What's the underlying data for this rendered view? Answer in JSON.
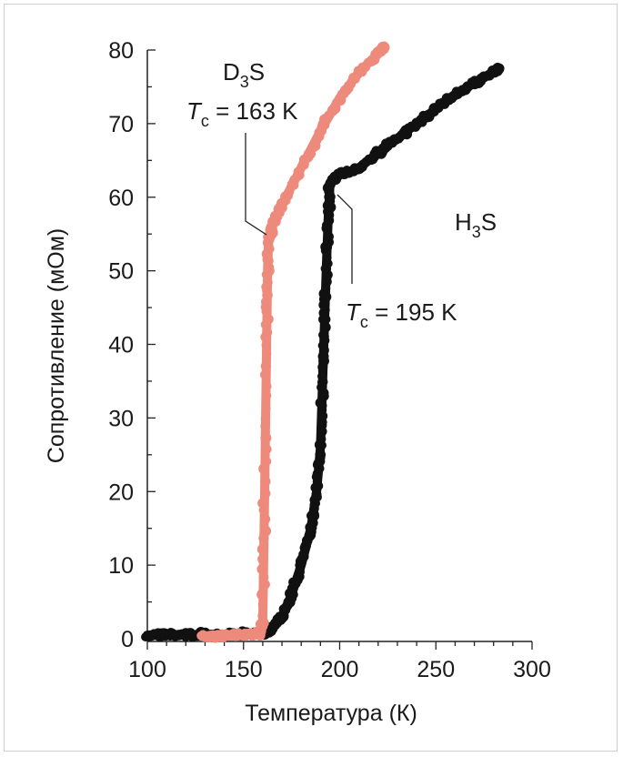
{
  "chart_data": {
    "type": "scatter",
    "xlabel": "Температура (К)",
    "ylabel": "Сопротивление (мОм)",
    "xlim": [
      100,
      300
    ],
    "ylim": [
      0,
      80
    ],
    "x_ticks": [
      "100",
      "150",
      "200",
      "250",
      "300"
    ],
    "y_ticks": [
      "0",
      "10",
      "20",
      "30",
      "40",
      "50",
      "60",
      "70",
      "80"
    ],
    "grid": false,
    "series": [
      {
        "name": "H3S",
        "color": "#111111",
        "x": [
          100,
          110,
          120,
          130,
          140,
          150,
          160,
          165,
          170,
          175,
          180,
          185,
          188,
          190,
          191,
          192,
          193,
          194,
          195,
          200,
          210,
          220,
          230,
          240,
          250,
          260,
          270,
          280,
          283
        ],
        "y": [
          0.5,
          0.6,
          0.5,
          0.6,
          0.6,
          0.7,
          0.7,
          1.5,
          3,
          6,
          10,
          15,
          20,
          26,
          34,
          42,
          50,
          57,
          62,
          63,
          64,
          66,
          68,
          70,
          72,
          74,
          75.5,
          77,
          77.5
        ]
      },
      {
        "name": "D3S",
        "color": "#ee8a7c",
        "x": [
          128,
          140,
          150,
          158,
          160,
          161,
          162,
          162.5,
          163,
          165,
          170,
          180,
          190,
          200,
          210,
          220,
          223
        ],
        "y": [
          0.4,
          0.4,
          0.5,
          0.6,
          2,
          20,
          40,
          50,
          54,
          56,
          59,
          64,
          69,
          73.5,
          77,
          79.5,
          80.5
        ]
      }
    ],
    "annotations": {
      "d3s_label": "D",
      "d3s_sub": "3",
      "d3s_tail": "S",
      "d3s_tc_T": "T",
      "d3s_tc_sub": "c",
      "d3s_tc_value": " = 163 K",
      "h3s_label": "H",
      "h3s_sub": "3",
      "h3s_tail": "S",
      "h3s_tc_T": "T",
      "h3s_tc_sub": "c",
      "h3s_tc_value": " = 195 K"
    }
  }
}
